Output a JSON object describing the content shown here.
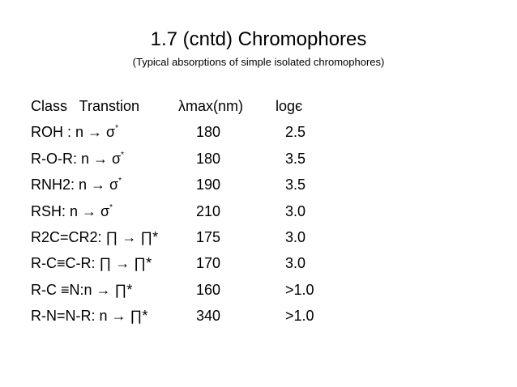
{
  "header": {
    "title": "1.7 (cntd) Chromophores",
    "subtitle": "(Typical absorptions of simple isolated chromophores)"
  },
  "table": {
    "columns": [
      "Class   Transtion",
      "λmax(nm)",
      "logє"
    ],
    "rows": [
      {
        "class": "ROH : n → σ",
        "sup": "*",
        "lmax": "180",
        "log": "2.5"
      },
      {
        "class": "R-O-R: n → σ",
        "sup": "*",
        "lmax": "180",
        "log": "3.5"
      },
      {
        "class": "RNH2: n → σ",
        "sup": "*",
        "lmax": "190",
        "log": "3.5"
      },
      {
        "class": "RSH: n → σ",
        "sup": "*",
        "lmax": "210",
        "log": "3.0"
      },
      {
        "class": "R2C=CR2: ∏ → ∏*",
        "lmax": "175",
        "log": "3.0"
      },
      {
        "class": "R-C≡C-R: ∏ → ∏*",
        "lmax": "170",
        "log": "3.0"
      },
      {
        "class": "R-C ≡N:n → ∏*",
        "lmax": "160",
        "log": ">1.0"
      },
      {
        "class": "R-N=N-R: n → ∏*",
        "lmax": "340",
        "log": ">1.0"
      }
    ]
  }
}
